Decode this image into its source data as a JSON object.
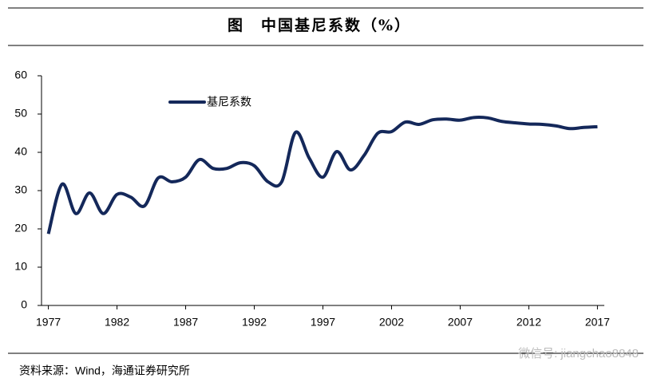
{
  "chart_data": {
    "type": "line",
    "title": "图　中国基尼系数（%）",
    "x": [
      1977,
      1978,
      1979,
      1980,
      1981,
      1982,
      1983,
      1984,
      1985,
      1986,
      1987,
      1988,
      1989,
      1990,
      1991,
      1992,
      1993,
      1994,
      1995,
      1996,
      1997,
      1998,
      1999,
      2000,
      2001,
      2002,
      2003,
      2004,
      2005,
      2006,
      2007,
      2008,
      2009,
      2010,
      2011,
      2012,
      2013,
      2014,
      2015,
      2016,
      2017
    ],
    "series": [
      {
        "name": "基尼系数",
        "color": "#14285a",
        "values": [
          18.7,
          31.7,
          24,
          29.4,
          24,
          29,
          28.3,
          26,
          33.3,
          32.3,
          33.5,
          38.1,
          35.8,
          35.8,
          37.3,
          36.5,
          32.3,
          32.3,
          45.2,
          38.5,
          33.5,
          40.2,
          35.4,
          39.2,
          45,
          45.4,
          47.9,
          47.3,
          48.5,
          48.7,
          48.4,
          49.1,
          49,
          48.1,
          47.7,
          47.4,
          47.3,
          46.9,
          46.2,
          46.5,
          46.7
        ]
      }
    ],
    "xlim": [
      1976.5,
      2017.5
    ],
    "xticks": [
      1977,
      1982,
      1987,
      1992,
      1997,
      2002,
      2007,
      2012,
      2017
    ],
    "ylim": [
      0,
      60
    ],
    "yticks": [
      0,
      10,
      20,
      30,
      40,
      50,
      60
    ],
    "grid": false,
    "source": "资料来源：Wind，海通证券研究所",
    "watermark": "微信号: jiangchao8848"
  }
}
